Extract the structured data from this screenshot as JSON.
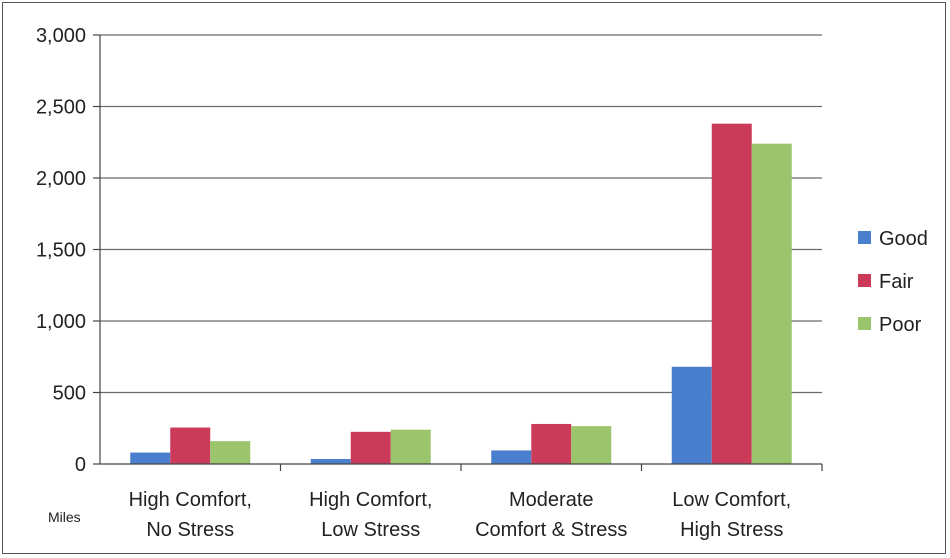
{
  "chart_data": {
    "type": "bar",
    "categories": [
      [
        "High Comfort,",
        "No Stress"
      ],
      [
        "High Comfort,",
        "Low Stress"
      ],
      [
        "Moderate",
        "Comfort & Stress"
      ],
      [
        "Low Comfort,",
        "High Stress"
      ]
    ],
    "series": [
      {
        "name": "Good",
        "color": "#4a7fce",
        "values": [
          80,
          35,
          95,
          680
        ]
      },
      {
        "name": "Fair",
        "color": "#cc3a5a",
        "values": [
          255,
          225,
          280,
          2380
        ]
      },
      {
        "name": "Poor",
        "color": "#9bc56c",
        "values": [
          160,
          240,
          265,
          2240
        ]
      }
    ],
    "ylim": [
      0,
      3000
    ],
    "yticks": [
      0,
      500,
      1000,
      1500,
      2000,
      2500,
      3000
    ],
    "ytick_labels": [
      "0",
      "500",
      "1,000",
      "1,500",
      "2,000",
      "2,500",
      "3,000"
    ],
    "unit_label": "Miles",
    "grid": true,
    "legend_position": "right"
  }
}
